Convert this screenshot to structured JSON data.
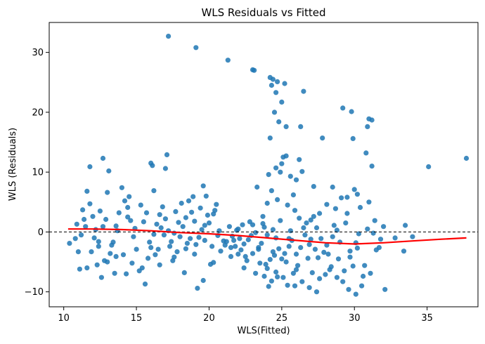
{
  "chart_data": {
    "type": "scatter",
    "title": "WLS Residuals vs Fitted",
    "xlabel": "WLS(Fitted)",
    "ylabel": "WLS (Residuals)",
    "xlim": [
      9,
      38.5
    ],
    "ylim": [
      -12.5,
      35
    ],
    "xticks": [
      10,
      15,
      20,
      25,
      30,
      35
    ],
    "yticks": [
      -10,
      0,
      10,
      20,
      30
    ],
    "grid": false,
    "point_color": "#1f77b4",
    "trend_color": "#ff0000",
    "zero_line_color": "#000000",
    "points": [
      [
        17.2,
        32.7
      ],
      [
        19.1,
        30.8
      ],
      [
        21.3,
        28.7
      ],
      [
        23.0,
        27.1
      ],
      [
        23.1,
        27.0
      ],
      [
        24.2,
        25.8
      ],
      [
        24.4,
        25.5
      ],
      [
        24.7,
        25.1
      ],
      [
        25.2,
        24.8
      ],
      [
        26.5,
        23.5
      ],
      [
        24.3,
        24.5
      ],
      [
        24.6,
        23.3
      ],
      [
        25.0,
        21.7
      ],
      [
        24.5,
        20.0
      ],
      [
        24.8,
        18.4
      ],
      [
        25.3,
        17.6
      ],
      [
        24.2,
        15.7
      ],
      [
        26.3,
        17.6
      ],
      [
        27.8,
        15.7
      ],
      [
        29.2,
        20.7
      ],
      [
        29.8,
        20.1
      ],
      [
        31.0,
        18.9
      ],
      [
        31.2,
        18.7
      ],
      [
        30.9,
        17.6
      ],
      [
        29.9,
        15.6
      ],
      [
        30.8,
        13.2
      ],
      [
        31.2,
        11.0
      ],
      [
        35.1,
        10.9
      ],
      [
        37.7,
        12.3
      ],
      [
        16.0,
        11.5
      ],
      [
        16.1,
        11.1
      ],
      [
        17.1,
        12.9
      ],
      [
        12.7,
        12.3
      ],
      [
        13.1,
        10.2
      ],
      [
        11.8,
        10.9
      ],
      [
        17.0,
        10.6
      ],
      [
        19.6,
        7.7
      ],
      [
        24.1,
        9.6
      ],
      [
        25.1,
        12.5
      ],
      [
        25.3,
        12.7
      ],
      [
        26.2,
        12.1
      ],
      [
        25.0,
        11.4
      ],
      [
        24.6,
        10.7
      ],
      [
        24.9,
        10.0
      ],
      [
        25.6,
        9.3
      ],
      [
        26.0,
        8.7
      ],
      [
        26.4,
        10.1
      ],
      [
        27.2,
        7.6
      ],
      [
        28.5,
        7.5
      ],
      [
        30.0,
        7.1
      ],
      [
        30.2,
        6.3
      ],
      [
        31.0,
        5.0
      ],
      [
        29.1,
        5.7
      ],
      [
        29.5,
        5.8
      ],
      [
        28.1,
        4.6
      ],
      [
        28.7,
        3.9
      ],
      [
        27.6,
        3.1
      ],
      [
        27.0,
        2.0
      ],
      [
        26.7,
        1.5
      ],
      [
        26.2,
        2.3
      ],
      [
        25.9,
        3.6
      ],
      [
        25.4,
        4.5
      ],
      [
        25.8,
        6.2
      ],
      [
        24.7,
        5.4
      ],
      [
        24.3,
        6.9
      ],
      [
        24.0,
        4.8
      ],
      [
        23.7,
        2.6
      ],
      [
        23.3,
        7.5
      ],
      [
        22.8,
        1.7
      ],
      [
        22.3,
        1.2
      ],
      [
        22.0,
        0.5
      ],
      [
        21.6,
        -0.7
      ],
      [
        21.2,
        -1.6
      ],
      [
        21.8,
        -2.4
      ],
      [
        22.2,
        -3.0
      ],
      [
        22.5,
        -4.1
      ],
      [
        23.0,
        -3.6
      ],
      [
        23.5,
        -5.2
      ],
      [
        24.0,
        -6.1
      ],
      [
        24.3,
        -8.2
      ],
      [
        24.7,
        -7.5
      ],
      [
        25.1,
        -7.6
      ],
      [
        25.4,
        -8.9
      ],
      [
        25.8,
        -6.9
      ],
      [
        26.1,
        -5.6
      ],
      [
        26.4,
        -8.3
      ],
      [
        26.8,
        -4.4
      ],
      [
        27.1,
        -6.8
      ],
      [
        27.6,
        -7.8
      ],
      [
        28.0,
        -7.1
      ],
      [
        28.4,
        -5.8
      ],
      [
        28.8,
        -7.6
      ],
      [
        29.2,
        -8.3
      ],
      [
        29.6,
        -9.6
      ],
      [
        30.1,
        -10.4
      ],
      [
        30.6,
        -7.4
      ],
      [
        31.1,
        -6.9
      ],
      [
        32.1,
        -9.6
      ],
      [
        31.7,
        -2.6
      ],
      [
        32.8,
        -1.0
      ],
      [
        33.4,
        -3.2
      ],
      [
        33.5,
        1.1
      ],
      [
        34.0,
        -0.8
      ],
      [
        31.4,
        1.9
      ],
      [
        30.9,
        0.5
      ],
      [
        30.3,
        -0.3
      ],
      [
        30.1,
        -1.8
      ],
      [
        29.7,
        -3.2
      ],
      [
        29.4,
        1.5
      ],
      [
        28.8,
        0.3
      ],
      [
        28.5,
        -0.8
      ],
      [
        28.1,
        -2.2
      ],
      [
        27.9,
        -3.4
      ],
      [
        27.5,
        -4.3
      ],
      [
        27.3,
        -2.9
      ],
      [
        27.0,
        -1.2
      ],
      [
        26.6,
        -0.5
      ],
      [
        26.3,
        -2.6
      ],
      [
        26.0,
        -3.7
      ],
      [
        25.7,
        -1.4
      ],
      [
        25.5,
        -2.4
      ],
      [
        25.2,
        -3.6
      ],
      [
        25.0,
        -4.5
      ],
      [
        24.8,
        -2.8
      ],
      [
        24.6,
        -1.0
      ],
      [
        24.4,
        -3.3
      ],
      [
        24.2,
        -4.6
      ],
      [
        24.0,
        -0.5
      ],
      [
        23.8,
        0.8
      ],
      [
        23.6,
        -1.9
      ],
      [
        23.4,
        -2.6
      ],
      [
        23.2,
        -0.1
      ],
      [
        23.0,
        1.2
      ],
      [
        22.7,
        -1.3
      ],
      [
        22.4,
        -2.0
      ],
      [
        22.1,
        -1.1
      ],
      [
        21.9,
        0.3
      ],
      [
        21.5,
        -2.6
      ],
      [
        21.0,
        -1.5
      ],
      [
        20.6,
        -0.6
      ],
      [
        20.3,
        -5.1
      ],
      [
        20.1,
        -5.4
      ],
      [
        20.4,
        3.6
      ],
      [
        20.5,
        4.6
      ],
      [
        19.9,
        2.8
      ],
      [
        19.7,
        1.1
      ],
      [
        19.5,
        0.4
      ],
      [
        19.3,
        -0.9
      ],
      [
        19.1,
        -2.1
      ],
      [
        19.0,
        1.8
      ],
      [
        18.8,
        3.3
      ],
      [
        18.6,
        5.2
      ],
      [
        18.4,
        2.4
      ],
      [
        18.2,
        0.9
      ],
      [
        18.0,
        -0.8
      ],
      [
        17.8,
        -3.3
      ],
      [
        17.6,
        -4.2
      ],
      [
        17.4,
        -1.6
      ],
      [
        17.2,
        0.2
      ],
      [
        17.0,
        2.2
      ],
      [
        16.8,
        4.2
      ],
      [
        16.6,
        2.9
      ],
      [
        16.4,
        1.3
      ],
      [
        16.2,
        -0.4
      ],
      [
        16.0,
        -2.6
      ],
      [
        15.8,
        -4.4
      ],
      [
        15.6,
        -8.7
      ],
      [
        15.2,
        -6.5
      ],
      [
        15.0,
        -2.9
      ],
      [
        14.8,
        -0.8
      ],
      [
        14.6,
        1.9
      ],
      [
        14.4,
        4.1
      ],
      [
        14.2,
        5.2
      ],
      [
        14.0,
        7.4
      ],
      [
        13.8,
        3.2
      ],
      [
        13.6,
        1.0
      ],
      [
        13.4,
        -1.7
      ],
      [
        13.2,
        -3.6
      ],
      [
        13.0,
        -5.0
      ],
      [
        12.8,
        -4.8
      ],
      [
        12.6,
        -7.6
      ],
      [
        12.4,
        -2.4
      ],
      [
        12.2,
        0.4
      ],
      [
        12.0,
        2.6
      ],
      [
        11.8,
        4.7
      ],
      [
        11.6,
        6.8
      ],
      [
        11.4,
        2.1
      ],
      [
        11.2,
        -0.5
      ],
      [
        11.0,
        -3.3
      ],
      [
        10.8,
        -1.1
      ],
      [
        10.4,
        -1.9
      ],
      [
        11.1,
        -6.2
      ],
      [
        11.6,
        -6.0
      ],
      [
        12.3,
        -5.5
      ],
      [
        13.5,
        -6.9
      ],
      [
        14.3,
        -7.0
      ],
      [
        15.4,
        -6.0
      ],
      [
        16.6,
        -5.5
      ],
      [
        17.5,
        -4.8
      ],
      [
        18.3,
        -6.8
      ],
      [
        19.2,
        -9.4
      ],
      [
        19.6,
        -8.1
      ],
      [
        18.9,
        5.9
      ],
      [
        19.8,
        6.0
      ],
      [
        20.3,
        3.0
      ],
      [
        20.0,
        1.5
      ],
      [
        21.1,
        -2.2
      ],
      [
        21.7,
        -1.4
      ],
      [
        22.6,
        -4.8
      ],
      [
        23.2,
        -6.9
      ],
      [
        23.9,
        -5.4
      ],
      [
        24.1,
        -9.1
      ],
      [
        24.5,
        -3.9
      ],
      [
        25.9,
        -9.0
      ],
      [
        26.9,
        -9.3
      ],
      [
        27.4,
        -10.0
      ],
      [
        28.3,
        -6.3
      ],
      [
        28.9,
        -4.5
      ],
      [
        29.3,
        -6.5
      ],
      [
        29.9,
        -5.7
      ],
      [
        30.2,
        -2.7
      ],
      [
        30.5,
        -9.0
      ],
      [
        15.3,
        4.5
      ],
      [
        16.2,
        6.9
      ],
      [
        14.9,
        0.6
      ],
      [
        13.0,
        6.6
      ],
      [
        12.5,
        3.5
      ],
      [
        14.5,
        5.9
      ],
      [
        17.7,
        3.4
      ],
      [
        18.1,
        4.8
      ],
      [
        19.4,
        4.0
      ],
      [
        17.9,
        1.6
      ],
      [
        16.9,
        -0.5
      ],
      [
        15.9,
        -1.7
      ],
      [
        14.1,
        -3.8
      ],
      [
        13.3,
        -2.2
      ],
      [
        12.1,
        -1.0
      ],
      [
        11.5,
        0.9
      ],
      [
        10.9,
        1.3
      ],
      [
        11.3,
        3.7
      ],
      [
        12.9,
        2.1
      ],
      [
        13.7,
        0.2
      ],
      [
        15.5,
        1.7
      ],
      [
        16.5,
        -2.9
      ],
      [
        18.5,
        -1.9
      ],
      [
        20.2,
        -2.4
      ],
      [
        21.4,
        0.9
      ],
      [
        22.9,
        -0.6
      ],
      [
        23.7,
        1.4
      ],
      [
        24.9,
        1.9
      ],
      [
        25.6,
        0.2
      ],
      [
        26.5,
        0.7
      ],
      [
        27.7,
        -1.1
      ],
      [
        28.6,
        1.1
      ],
      [
        29.5,
        3.1
      ],
      [
        30.4,
        4.1
      ],
      [
        31.3,
        -0.2
      ],
      [
        32.0,
        0.9
      ],
      [
        31.8,
        -1.2
      ],
      [
        29.0,
        -1.7
      ],
      [
        27.2,
        2.6
      ],
      [
        26.0,
        -6.3
      ],
      [
        25.3,
        -5.0
      ],
      [
        24.6,
        -6.7
      ],
      [
        23.8,
        -7.4
      ],
      [
        22.4,
        -6.0
      ],
      [
        21.5,
        -4.1
      ],
      [
        20.8,
        -3.2
      ],
      [
        19.0,
        -3.7
      ],
      [
        18.7,
        -1.1
      ],
      [
        17.3,
        -2.4
      ],
      [
        16.3,
        -3.8
      ],
      [
        14.7,
        -5.2
      ],
      [
        13.6,
        -4.1
      ],
      [
        12.4,
        -1.6
      ],
      [
        11.9,
        -3.3
      ],
      [
        12.7,
        0.9
      ],
      [
        14.4,
        2.5
      ],
      [
        15.7,
        3.2
      ],
      [
        16.7,
        0.7
      ],
      [
        17.6,
        -0.2
      ],
      [
        18.4,
        -2.8
      ],
      [
        19.7,
        -1.4
      ],
      [
        20.7,
        0.2
      ],
      [
        22.0,
        -3.7
      ],
      [
        23.4,
        -2.9
      ],
      [
        24.4,
        0.4
      ],
      [
        25.5,
        -1.1
      ],
      [
        26.9,
        -2.1
      ],
      [
        27.4,
        0.7
      ],
      [
        28.2,
        -3.7
      ],
      [
        29.7,
        -4.2
      ],
      [
        30.7,
        -5.6
      ],
      [
        31.5,
        -3.0
      ]
    ],
    "trend": [
      [
        10.3,
        0.5
      ],
      [
        12.0,
        0.5
      ],
      [
        14.0,
        0.4
      ],
      [
        16.0,
        0.2
      ],
      [
        18.0,
        -0.1
      ],
      [
        20.0,
        -0.3
      ],
      [
        22.0,
        -0.6
      ],
      [
        24.0,
        -1.0
      ],
      [
        26.0,
        -1.4
      ],
      [
        28.0,
        -1.8
      ],
      [
        30.0,
        -2.0
      ],
      [
        32.0,
        -1.8
      ],
      [
        34.0,
        -1.5
      ],
      [
        36.0,
        -1.2
      ],
      [
        37.7,
        -1.0
      ]
    ]
  }
}
